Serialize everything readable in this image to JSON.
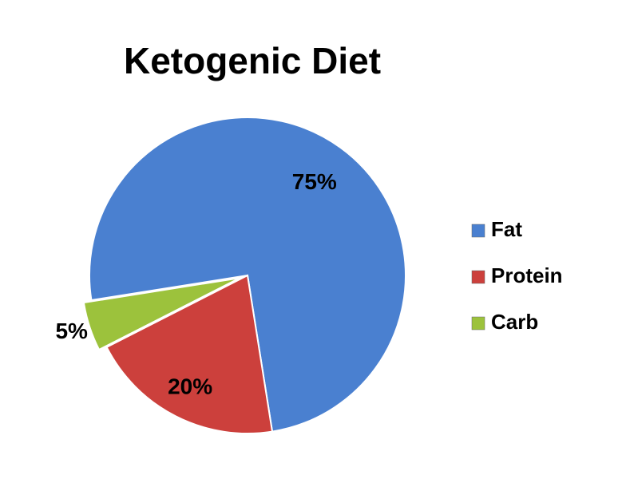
{
  "chart_data": {
    "type": "pie",
    "title": "Ketogenic Diet",
    "categories": [
      "Fat",
      "Protein",
      "Carb"
    ],
    "values": [
      75,
      20,
      5
    ],
    "value_labels": [
      "75%",
      "20%",
      "5%"
    ],
    "colors": [
      "#4a80d0",
      "#cc403c",
      "#9cc23c"
    ],
    "legend": "right"
  }
}
